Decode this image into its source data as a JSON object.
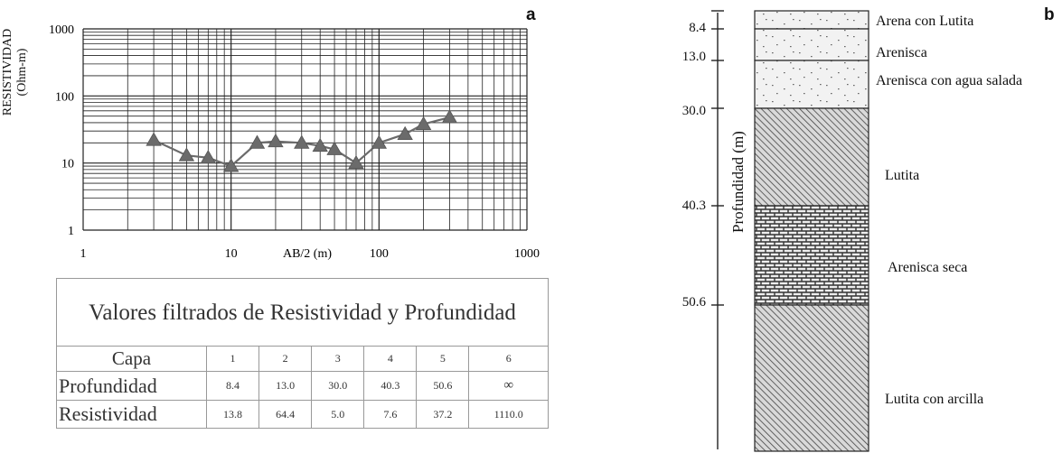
{
  "panel_a": {
    "letter": "a"
  },
  "panel_b": {
    "letter": "b"
  },
  "chart_data": {
    "type": "scatter",
    "title": "",
    "xlabel": "AB/2 (m)",
    "ylabel_line1": "RESISTIVIDAD",
    "ylabel_line2": "(Ohm-m)",
    "xscale": "log",
    "yscale": "log",
    "xlim": [
      1,
      1000
    ],
    "ylim": [
      1,
      1000
    ],
    "grid": true,
    "x_tick_labels": [
      "1",
      "10",
      "100",
      "1000"
    ],
    "y_tick_labels": [
      "1",
      "10",
      "100",
      "1000"
    ],
    "series": [
      {
        "marker": "triangle",
        "color": "#6b6b6b",
        "x": [
          3,
          5,
          7,
          10,
          15,
          20,
          30,
          40,
          50,
          70,
          100,
          150,
          200,
          300
        ],
        "y": [
          22,
          13,
          12,
          9,
          20,
          21,
          20,
          18,
          16,
          10,
          20,
          27,
          38,
          48
        ]
      }
    ]
  },
  "table": {
    "title": "Valores filtrados de Resistividad y Profundidad",
    "row_header_capa": "Capa",
    "capa": [
      "1",
      "2",
      "3",
      "4",
      "5",
      "6"
    ],
    "row_header_profundidad": "Profundidad",
    "profundidad": [
      "8.4",
      "13.0",
      "30.0",
      "40.3",
      "50.6",
      "∞"
    ],
    "row_header_resistividad": "Resistividad",
    "resistividad": [
      "13.8",
      "64.4",
      "5.0",
      "7.6",
      "37.2",
      "1110.0"
    ]
  },
  "column": {
    "axis_label": "Profundidad (m)",
    "depth_ticks": [
      "8.4",
      "13.0",
      "30.0",
      "40.3",
      "50.6"
    ],
    "layers": [
      {
        "label": "Arena con Lutita",
        "pattern": "dots",
        "top": 0,
        "bottom": 8.4
      },
      {
        "label": "Arenisca",
        "pattern": "dots",
        "top": 8.4,
        "bottom": 13.0
      },
      {
        "label": "Arenisca con agua salada",
        "pattern": "dots",
        "top": 13.0,
        "bottom": 30.0
      },
      {
        "label": "Lutita",
        "pattern": "hatch",
        "top": 30.0,
        "bottom": 40.3
      },
      {
        "label": "Arenisca seca",
        "pattern": "bricks",
        "top": 40.3,
        "bottom": 50.6
      },
      {
        "label": "Lutita con arcilla",
        "pattern": "hatch",
        "top": 50.6,
        "bottom": null
      }
    ]
  }
}
